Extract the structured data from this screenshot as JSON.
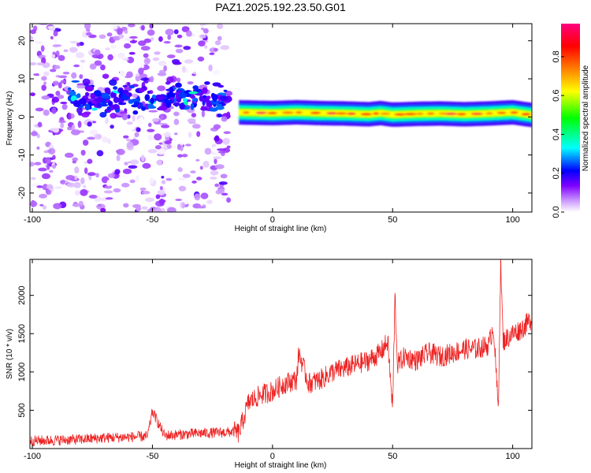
{
  "title": "PAZ1.2025.192.23.50.G01",
  "chart_data": [
    {
      "type": "heatmap",
      "xlabel": "Height of straight line (km)",
      "ylabel": "Frequency (Hz)",
      "xlim": [
        -101,
        108
      ],
      "ylim": [
        -25,
        24.5
      ],
      "x_ticks": [
        -100,
        -50,
        0,
        50,
        100
      ],
      "y_ticks": [
        -20,
        -10,
        0,
        10,
        20
      ],
      "grid": false,
      "colorbar": {
        "label": "Normalized spectral amplitude",
        "range": [
          0,
          0.97
        ],
        "ticks": [
          "0.0",
          "0.2",
          "0.4",
          "0.6",
          "0.8"
        ],
        "colors": [
          "#ffffff",
          "#cc99ff",
          "#7f00ff",
          "#0000ff",
          "#00ffff",
          "#00ff00",
          "#ffff00",
          "#ff7f00",
          "#ff0000",
          "#ff0080"
        ]
      },
      "ridge": {
        "description_x": [
          -14,
          0,
          10,
          20,
          30,
          40,
          45,
          50,
          60,
          70,
          80,
          90,
          100,
          108
        ],
        "frequency_hz": [
          1.2,
          1.0,
          1.2,
          1.0,
          0.9,
          0.7,
          1.0,
          0.6,
          0.8,
          0.9,
          0.7,
          0.9,
          1.2,
          0.5
        ],
        "peak_amplitude": 0.95
      },
      "noise_region_x": [
        -101,
        -18
      ],
      "noise_center_frequency_hz": 5
    },
    {
      "type": "line",
      "xlabel": "Height of straight line (km)",
      "ylabel": "SNR (10 * v/v)",
      "xlim": [
        -101,
        108
      ],
      "ylim": [
        0,
        2470
      ],
      "x_ticks": [
        -100,
        -50,
        0,
        50,
        100
      ],
      "y_ticks": [
        500,
        1000,
        1500,
        2000
      ],
      "grid": false,
      "series": [
        {
          "color": "#ee2222",
          "x": [
            -101,
            -90,
            -80,
            -70,
            -60,
            -52,
            -50,
            -45,
            -40,
            -30,
            -20,
            -16,
            -14,
            -10,
            -5,
            0,
            5,
            10,
            11,
            15,
            20,
            25,
            30,
            35,
            40,
            45,
            48,
            50,
            51,
            52,
            55,
            60,
            65,
            70,
            75,
            80,
            85,
            90,
            92,
            94,
            95,
            96,
            100,
            103,
            105,
            108
          ],
          "y": [
            100,
            110,
            120,
            140,
            150,
            160,
            490,
            170,
            180,
            200,
            210,
            220,
            200,
            600,
            700,
            750,
            850,
            900,
            1250,
            850,
            900,
            1000,
            1050,
            1100,
            1150,
            1250,
            1400,
            500,
            2000,
            1100,
            1200,
            1150,
            1250,
            1200,
            1250,
            1300,
            1300,
            1350,
            1600,
            500,
            2450,
            1400,
            1500,
            1550,
            1600,
            1700
          ]
        }
      ]
    }
  ]
}
